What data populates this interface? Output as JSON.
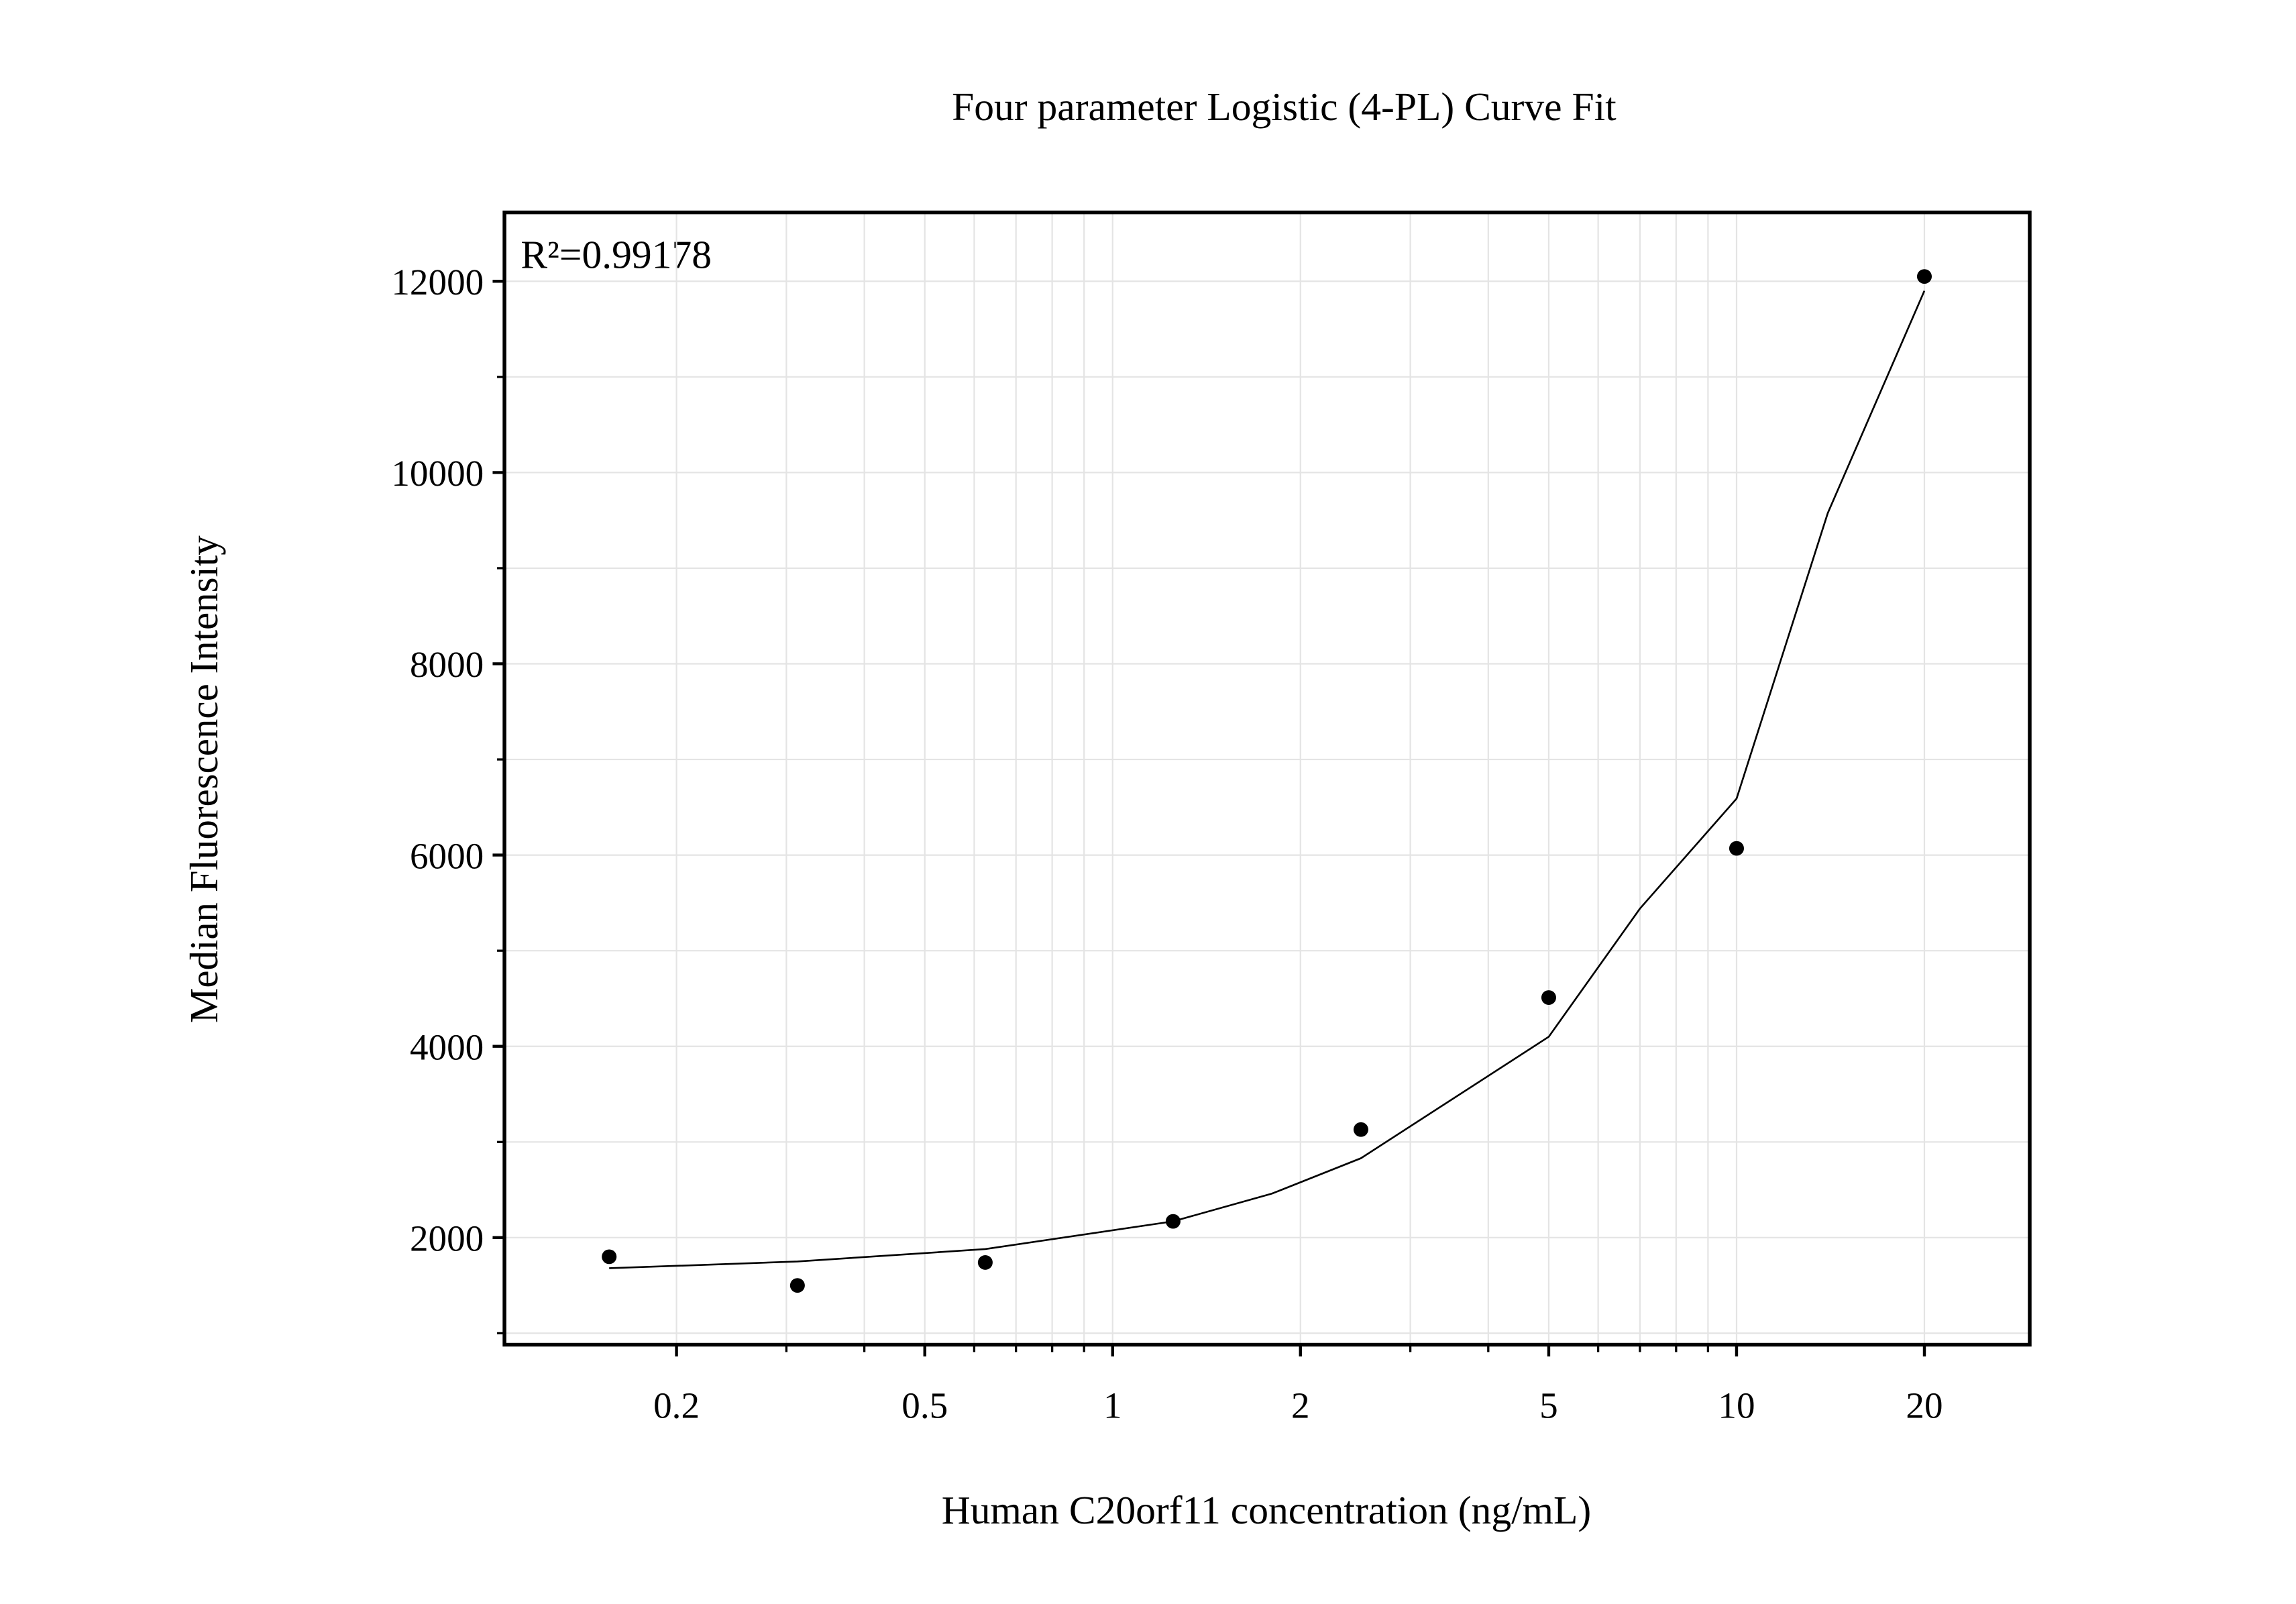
{
  "chart_data": {
    "type": "scatter",
    "title": "Four parameter Logistic (4-PL) Curve Fit",
    "xlabel": "Human C20orf11 concentration (ng/mL)",
    "ylabel": "Median Fluorescence Intensity",
    "annotation": "R²=0.99178",
    "xscale": "log",
    "grid": true,
    "xlim": [
      0.106,
      29.5
    ],
    "ylim": [
      880,
      12720
    ],
    "xticks": [
      0.2,
      0.5,
      1,
      2,
      5,
      10,
      20
    ],
    "xminorticks": [
      0.3,
      0.4,
      0.6,
      0.7,
      0.8,
      0.9,
      3,
      4,
      6,
      7,
      8,
      9
    ],
    "yticks": [
      2000,
      4000,
      6000,
      8000,
      10000,
      12000
    ],
    "yminorticks": [
      1000,
      3000,
      5000,
      7000,
      9000,
      11000
    ],
    "series": [
      {
        "color": "#000000",
        "x": [
          0.156,
          0.3125,
          0.625,
          1.25,
          2.5,
          5,
          10,
          20
        ],
        "values": [
          1800,
          1500,
          1740,
          2170,
          3130,
          4510,
          6070,
          12050
        ]
      },
      {
        "type": "line",
        "color": "#000000",
        "x": [
          0.156,
          0.3125,
          0.625,
          1.25,
          1.8,
          2.5,
          5,
          7,
          10,
          14,
          20
        ],
        "values": [
          1680,
          1750,
          1880,
          2170,
          2460,
          2830,
          4100,
          5440,
          6590,
          9575,
          11900
        ]
      }
    ]
  }
}
